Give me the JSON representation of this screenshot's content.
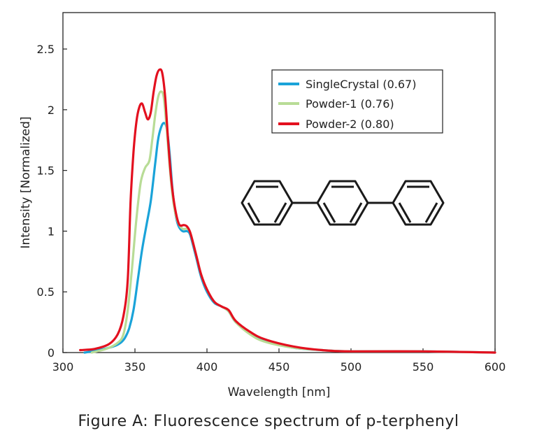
{
  "caption": "Figure A: Fluorescence spectrum of p-terphenyl",
  "chart_data": {
    "type": "line",
    "title": "",
    "xlabel": "Wavelength [nm]",
    "ylabel": "Intensity [Normalized]",
    "xlim": [
      300,
      600
    ],
    "ylim": [
      0,
      2.8
    ],
    "xticks": [
      300,
      350,
      400,
      450,
      500,
      550,
      600
    ],
    "yticks": [
      0,
      0.5,
      1,
      1.5,
      2,
      2.5
    ],
    "xtick_labels": [
      "300",
      "350",
      "400",
      "450",
      "500",
      "550",
      "600"
    ],
    "ytick_labels": [
      "0",
      "0.5",
      "1",
      "1.5",
      "2",
      "2.5"
    ],
    "grid": false,
    "legend_position": "top-right",
    "series": [
      {
        "name": "SingleCrystal (0.67)",
        "color": "#1aa3d9",
        "x": [
          315,
          325,
          335,
          340,
          343,
          346,
          349,
          352,
          355,
          358,
          361,
          364,
          366,
          368,
          370,
          372,
          374,
          376,
          378,
          380,
          383,
          386,
          388,
          390,
          393,
          396,
          400,
          405,
          410,
          415,
          420,
          430,
          440,
          460,
          480,
          500,
          550,
          600
        ],
        "y": [
          0.0,
          0.02,
          0.05,
          0.08,
          0.12,
          0.2,
          0.35,
          0.6,
          0.85,
          1.05,
          1.25,
          1.55,
          1.75,
          1.85,
          1.89,
          1.85,
          1.65,
          1.35,
          1.15,
          1.05,
          1.0,
          1.0,
          0.98,
          0.9,
          0.76,
          0.62,
          0.5,
          0.41,
          0.38,
          0.34,
          0.25,
          0.16,
          0.1,
          0.04,
          0.02,
          0.01,
          0.01,
          0.0
        ]
      },
      {
        "name": "Powder-1 (0.76)",
        "color": "#b8dc96",
        "x": [
          320,
          330,
          338,
          342,
          345,
          348,
          351,
          354,
          357,
          360,
          362,
          364,
          366,
          368,
          370,
          372,
          374,
          376,
          378,
          380,
          383,
          386,
          388,
          390,
          393,
          396,
          400,
          405,
          410,
          415,
          420,
          430,
          440,
          460,
          480,
          500,
          550,
          600
        ],
        "y": [
          0.0,
          0.03,
          0.08,
          0.15,
          0.35,
          0.7,
          1.1,
          1.4,
          1.52,
          1.58,
          1.75,
          1.95,
          2.1,
          2.15,
          2.1,
          1.85,
          1.55,
          1.3,
          1.15,
          1.07,
          1.02,
          1.02,
          1.0,
          0.92,
          0.78,
          0.64,
          0.52,
          0.42,
          0.38,
          0.34,
          0.25,
          0.15,
          0.09,
          0.04,
          0.02,
          0.01,
          0.01,
          0.0
        ]
      },
      {
        "name": "Powder-2 (0.80)",
        "color": "#e3101f",
        "x": [
          312,
          322,
          332,
          338,
          342,
          345,
          347,
          349,
          351,
          353,
          355,
          357,
          359,
          361,
          363,
          365,
          367,
          369,
          371,
          373,
          375,
          377,
          379,
          381,
          384,
          386,
          388,
          390,
          393,
          396,
          400,
          405,
          410,
          415,
          420,
          430,
          440,
          460,
          480,
          500,
          550,
          600
        ],
        "y": [
          0.02,
          0.03,
          0.07,
          0.15,
          0.3,
          0.6,
          1.25,
          1.65,
          1.9,
          2.02,
          2.05,
          1.98,
          1.92,
          1.98,
          2.15,
          2.28,
          2.33,
          2.3,
          2.1,
          1.75,
          1.45,
          1.25,
          1.12,
          1.05,
          1.05,
          1.04,
          1.0,
          0.92,
          0.78,
          0.64,
          0.52,
          0.42,
          0.38,
          0.35,
          0.26,
          0.17,
          0.11,
          0.05,
          0.02,
          0.01,
          0.01,
          0.0
        ]
      }
    ],
    "annotation": {
      "type": "molecule-structure",
      "name": "p-terphenyl"
    }
  }
}
